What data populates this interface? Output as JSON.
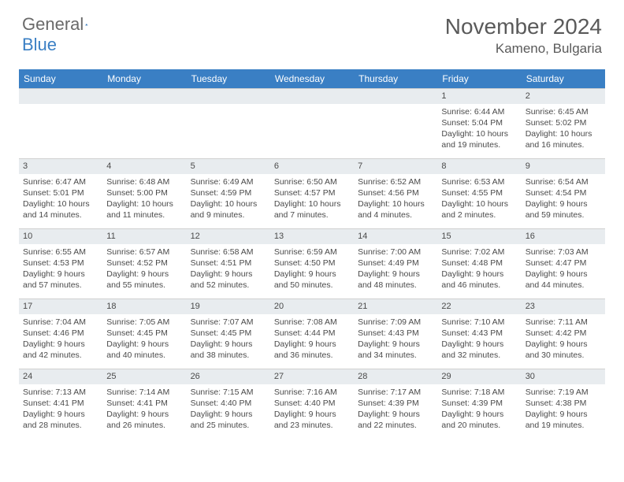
{
  "logo": {
    "text1": "General",
    "text2": "Blue"
  },
  "title": "November 2024",
  "location": "Kameno, Bulgaria",
  "colors": {
    "header_bg": "#3a7fc4",
    "daynum_bg": "#e8ecef",
    "text": "#4a4a4a",
    "title_text": "#5a5a5a"
  },
  "day_names": [
    "Sunday",
    "Monday",
    "Tuesday",
    "Wednesday",
    "Thursday",
    "Friday",
    "Saturday"
  ],
  "weeks": [
    [
      {
        "n": "",
        "sr": "",
        "ss": "",
        "dl": ""
      },
      {
        "n": "",
        "sr": "",
        "ss": "",
        "dl": ""
      },
      {
        "n": "",
        "sr": "",
        "ss": "",
        "dl": ""
      },
      {
        "n": "",
        "sr": "",
        "ss": "",
        "dl": ""
      },
      {
        "n": "",
        "sr": "",
        "ss": "",
        "dl": ""
      },
      {
        "n": "1",
        "sr": "Sunrise: 6:44 AM",
        "ss": "Sunset: 5:04 PM",
        "dl": "Daylight: 10 hours and 19 minutes."
      },
      {
        "n": "2",
        "sr": "Sunrise: 6:45 AM",
        "ss": "Sunset: 5:02 PM",
        "dl": "Daylight: 10 hours and 16 minutes."
      }
    ],
    [
      {
        "n": "3",
        "sr": "Sunrise: 6:47 AM",
        "ss": "Sunset: 5:01 PM",
        "dl": "Daylight: 10 hours and 14 minutes."
      },
      {
        "n": "4",
        "sr": "Sunrise: 6:48 AM",
        "ss": "Sunset: 5:00 PM",
        "dl": "Daylight: 10 hours and 11 minutes."
      },
      {
        "n": "5",
        "sr": "Sunrise: 6:49 AM",
        "ss": "Sunset: 4:59 PM",
        "dl": "Daylight: 10 hours and 9 minutes."
      },
      {
        "n": "6",
        "sr": "Sunrise: 6:50 AM",
        "ss": "Sunset: 4:57 PM",
        "dl": "Daylight: 10 hours and 7 minutes."
      },
      {
        "n": "7",
        "sr": "Sunrise: 6:52 AM",
        "ss": "Sunset: 4:56 PM",
        "dl": "Daylight: 10 hours and 4 minutes."
      },
      {
        "n": "8",
        "sr": "Sunrise: 6:53 AM",
        "ss": "Sunset: 4:55 PM",
        "dl": "Daylight: 10 hours and 2 minutes."
      },
      {
        "n": "9",
        "sr": "Sunrise: 6:54 AM",
        "ss": "Sunset: 4:54 PM",
        "dl": "Daylight: 9 hours and 59 minutes."
      }
    ],
    [
      {
        "n": "10",
        "sr": "Sunrise: 6:55 AM",
        "ss": "Sunset: 4:53 PM",
        "dl": "Daylight: 9 hours and 57 minutes."
      },
      {
        "n": "11",
        "sr": "Sunrise: 6:57 AM",
        "ss": "Sunset: 4:52 PM",
        "dl": "Daylight: 9 hours and 55 minutes."
      },
      {
        "n": "12",
        "sr": "Sunrise: 6:58 AM",
        "ss": "Sunset: 4:51 PM",
        "dl": "Daylight: 9 hours and 52 minutes."
      },
      {
        "n": "13",
        "sr": "Sunrise: 6:59 AM",
        "ss": "Sunset: 4:50 PM",
        "dl": "Daylight: 9 hours and 50 minutes."
      },
      {
        "n": "14",
        "sr": "Sunrise: 7:00 AM",
        "ss": "Sunset: 4:49 PM",
        "dl": "Daylight: 9 hours and 48 minutes."
      },
      {
        "n": "15",
        "sr": "Sunrise: 7:02 AM",
        "ss": "Sunset: 4:48 PM",
        "dl": "Daylight: 9 hours and 46 minutes."
      },
      {
        "n": "16",
        "sr": "Sunrise: 7:03 AM",
        "ss": "Sunset: 4:47 PM",
        "dl": "Daylight: 9 hours and 44 minutes."
      }
    ],
    [
      {
        "n": "17",
        "sr": "Sunrise: 7:04 AM",
        "ss": "Sunset: 4:46 PM",
        "dl": "Daylight: 9 hours and 42 minutes."
      },
      {
        "n": "18",
        "sr": "Sunrise: 7:05 AM",
        "ss": "Sunset: 4:45 PM",
        "dl": "Daylight: 9 hours and 40 minutes."
      },
      {
        "n": "19",
        "sr": "Sunrise: 7:07 AM",
        "ss": "Sunset: 4:45 PM",
        "dl": "Daylight: 9 hours and 38 minutes."
      },
      {
        "n": "20",
        "sr": "Sunrise: 7:08 AM",
        "ss": "Sunset: 4:44 PM",
        "dl": "Daylight: 9 hours and 36 minutes."
      },
      {
        "n": "21",
        "sr": "Sunrise: 7:09 AM",
        "ss": "Sunset: 4:43 PM",
        "dl": "Daylight: 9 hours and 34 minutes."
      },
      {
        "n": "22",
        "sr": "Sunrise: 7:10 AM",
        "ss": "Sunset: 4:43 PM",
        "dl": "Daylight: 9 hours and 32 minutes."
      },
      {
        "n": "23",
        "sr": "Sunrise: 7:11 AM",
        "ss": "Sunset: 4:42 PM",
        "dl": "Daylight: 9 hours and 30 minutes."
      }
    ],
    [
      {
        "n": "24",
        "sr": "Sunrise: 7:13 AM",
        "ss": "Sunset: 4:41 PM",
        "dl": "Daylight: 9 hours and 28 minutes."
      },
      {
        "n": "25",
        "sr": "Sunrise: 7:14 AM",
        "ss": "Sunset: 4:41 PM",
        "dl": "Daylight: 9 hours and 26 minutes."
      },
      {
        "n": "26",
        "sr": "Sunrise: 7:15 AM",
        "ss": "Sunset: 4:40 PM",
        "dl": "Daylight: 9 hours and 25 minutes."
      },
      {
        "n": "27",
        "sr": "Sunrise: 7:16 AM",
        "ss": "Sunset: 4:40 PM",
        "dl": "Daylight: 9 hours and 23 minutes."
      },
      {
        "n": "28",
        "sr": "Sunrise: 7:17 AM",
        "ss": "Sunset: 4:39 PM",
        "dl": "Daylight: 9 hours and 22 minutes."
      },
      {
        "n": "29",
        "sr": "Sunrise: 7:18 AM",
        "ss": "Sunset: 4:39 PM",
        "dl": "Daylight: 9 hours and 20 minutes."
      },
      {
        "n": "30",
        "sr": "Sunrise: 7:19 AM",
        "ss": "Sunset: 4:38 PM",
        "dl": "Daylight: 9 hours and 19 minutes."
      }
    ]
  ]
}
